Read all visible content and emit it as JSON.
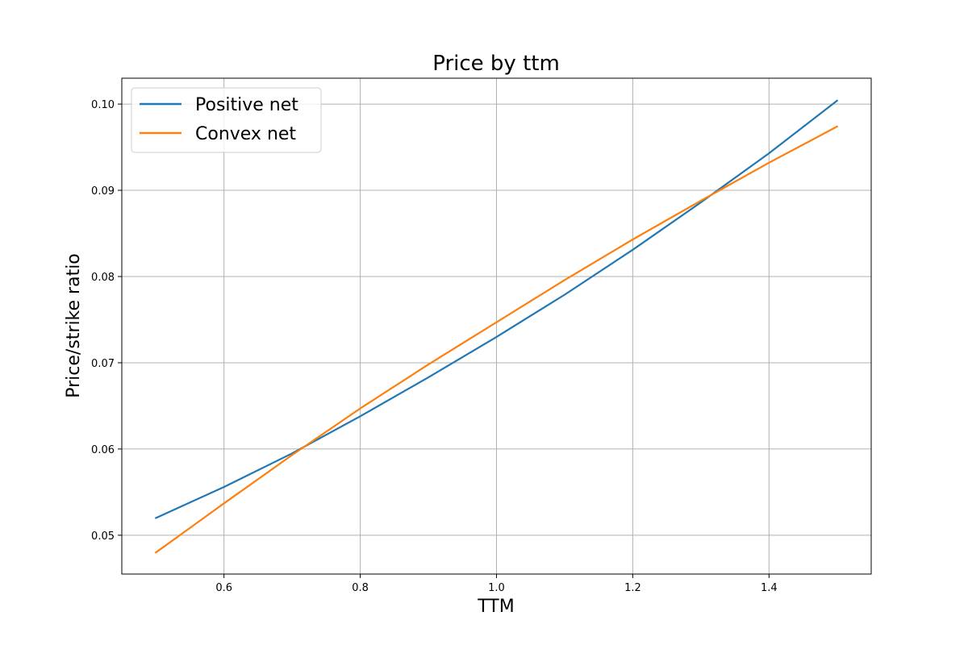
{
  "chart_data": {
    "type": "line",
    "title": "Price by ttm",
    "xlabel": "TTM",
    "ylabel": "Price/strike ratio",
    "xlim": [
      0.45,
      1.55
    ],
    "ylim": [
      0.0455,
      0.103
    ],
    "x_ticks": [
      0.6,
      0.8,
      1.0,
      1.2,
      1.4
    ],
    "x_tick_labels": [
      "0.6",
      "0.8",
      "1.0",
      "1.2",
      "1.4"
    ],
    "y_ticks": [
      0.05,
      0.06,
      0.07,
      0.08,
      0.09,
      0.1
    ],
    "y_tick_labels": [
      "0.05",
      "0.06",
      "0.07",
      "0.08",
      "0.09",
      "0.10"
    ],
    "grid": true,
    "legend_position": "top-left",
    "x": [
      0.5,
      0.6,
      0.7,
      0.8,
      0.9,
      1.0,
      1.1,
      1.2,
      1.3,
      1.4,
      1.5
    ],
    "series": [
      {
        "name": "Positive net",
        "color": "#1f77b4",
        "values": [
          0.052,
          0.0556,
          0.0595,
          0.0638,
          0.0683,
          0.073,
          0.0779,
          0.0831,
          0.0886,
          0.0943,
          0.1004
        ]
      },
      {
        "name": "Convex net",
        "color": "#ff7f0e",
        "values": [
          0.048,
          0.0537,
          0.0593,
          0.0647,
          0.0698,
          0.0747,
          0.0796,
          0.0843,
          0.0888,
          0.0932,
          0.0974
        ]
      }
    ]
  }
}
